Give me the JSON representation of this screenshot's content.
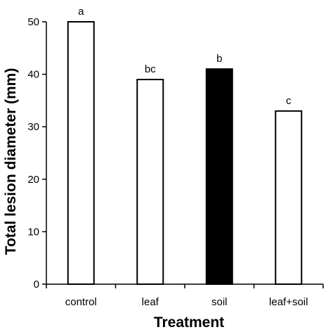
{
  "chart_data": {
    "type": "bar",
    "xlabel": "Treatment",
    "ylabel": "Total lesion diameter (mm)",
    "ylim": [
      0,
      50
    ],
    "yticks": [
      0,
      10,
      20,
      30,
      40,
      50
    ],
    "grid": false,
    "legend": "none",
    "categories": [
      "control",
      "leaf",
      "soil",
      "leaf+soil"
    ],
    "values": [
      50,
      39,
      41,
      33
    ],
    "significance_labels": [
      "a",
      "bc",
      "b",
      "c"
    ],
    "bar_fills": [
      "#ffffff",
      "#ffffff",
      "#000000",
      "#ffffff"
    ]
  }
}
